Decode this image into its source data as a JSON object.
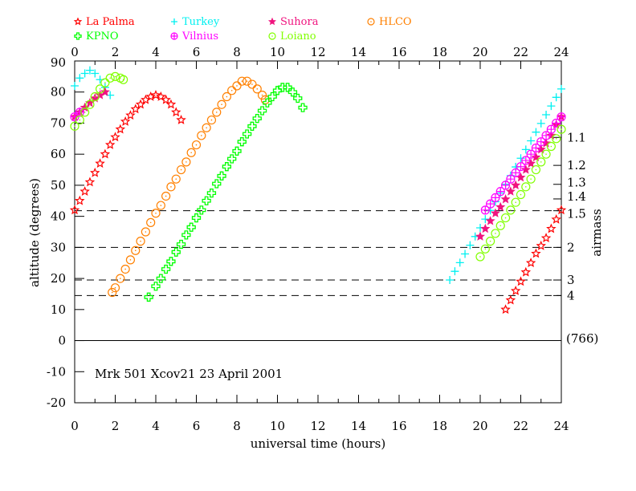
{
  "chart_data": {
    "type": "scatter",
    "annotation": "Mrk 501   Xcov21 23 April 2001",
    "right_note": "(766)",
    "xlabel": "universal time (hours)",
    "ylabel": "altitude (degrees)",
    "y2label": "airmass",
    "xlim": [
      0,
      24
    ],
    "ylim": [
      -20,
      90
    ],
    "x_ticks": [
      0,
      2,
      4,
      6,
      8,
      10,
      12,
      14,
      16,
      18,
      20,
      22,
      24
    ],
    "y_ticks": [
      -20,
      -10,
      0,
      10,
      20,
      30,
      40,
      50,
      60,
      70,
      80,
      90
    ],
    "airmass_ticks": [
      {
        "label": "1.1",
        "altitude": 65.4
      },
      {
        "label": "1.2",
        "altitude": 56.4
      },
      {
        "label": "1.3",
        "altitude": 50.3
      },
      {
        "label": "1.4",
        "altitude": 45.6
      },
      {
        "label": "1.5",
        "altitude": 41.8
      },
      {
        "label": "2",
        "altitude": 30.0
      },
      {
        "label": "3",
        "altitude": 19.5
      },
      {
        "label": "4",
        "altitude": 14.5
      }
    ],
    "dashed_airmass_lines": [
      41.8,
      30.0,
      19.5,
      14.5
    ],
    "legend_position": "top",
    "series": [
      {
        "name": "La Palma",
        "marker": "open-star",
        "color": "#ff0000",
        "segments": [
          [
            [
              0,
              42
            ],
            [
              0.25,
              45
            ],
            [
              0.5,
              48
            ],
            [
              0.75,
              51
            ],
            [
              1,
              54
            ],
            [
              1.25,
              57
            ],
            [
              1.5,
              60
            ],
            [
              1.75,
              63
            ],
            [
              2,
              65.5
            ],
            [
              2.25,
              68
            ],
            [
              2.5,
              70.5
            ],
            [
              2.75,
              72.5
            ],
            [
              3,
              74.5
            ],
            [
              3.25,
              76
            ],
            [
              3.5,
              77.5
            ],
            [
              3.75,
              78.5
            ],
            [
              4,
              79
            ],
            [
              4.25,
              78.5
            ],
            [
              4.5,
              77.5
            ],
            [
              4.75,
              76
            ],
            [
              5,
              73.5
            ],
            [
              5.25,
              71
            ]
          ],
          [
            [
              21.25,
              10
            ],
            [
              21.5,
              13
            ],
            [
              21.75,
              16
            ],
            [
              22,
              19
            ],
            [
              22.25,
              22
            ],
            [
              22.5,
              25
            ],
            [
              22.75,
              28
            ],
            [
              23,
              30.5
            ],
            [
              23.25,
              33
            ],
            [
              23.5,
              36
            ],
            [
              23.75,
              39
            ],
            [
              24,
              42
            ]
          ]
        ]
      },
      {
        "name": "Turkey",
        "marker": "plus",
        "color": "#00f0f0",
        "segments": [
          [
            [
              0,
              82
            ],
            [
              0.25,
              84.5
            ],
            [
              0.5,
              86
            ],
            [
              0.75,
              87
            ],
            [
              1,
              86
            ],
            [
              1.25,
              84
            ],
            [
              1.5,
              81.5
            ],
            [
              1.75,
              79
            ]
          ],
          [
            [
              18.5,
              19.5
            ],
            [
              18.75,
              22.3
            ],
            [
              19,
              25.1
            ],
            [
              19.25,
              27.9
            ],
            [
              19.5,
              30.7
            ],
            [
              19.75,
              33.5
            ],
            [
              20,
              36.3
            ],
            [
              20.25,
              39.1
            ],
            [
              20.5,
              41.9
            ],
            [
              20.75,
              44.7
            ],
            [
              21,
              47.5
            ],
            [
              21.25,
              50.3
            ],
            [
              21.5,
              53.1
            ],
            [
              21.75,
              55.9
            ],
            [
              22,
              58.7
            ],
            [
              22.25,
              61.5
            ],
            [
              22.5,
              64.3
            ],
            [
              22.75,
              67.1
            ],
            [
              23,
              69.9
            ],
            [
              23.25,
              72.7
            ],
            [
              23.5,
              75.5
            ],
            [
              23.75,
              78.3
            ],
            [
              24,
              81
            ]
          ]
        ]
      },
      {
        "name": "Suhora",
        "marker": "filled-star",
        "color": "#f0147f",
        "segments": [
          [
            [
              0,
              72
            ],
            [
              0.25,
              73.5
            ],
            [
              0.5,
              75
            ],
            [
              0.75,
              76.5
            ],
            [
              1,
              78
            ],
            [
              1.25,
              79
            ],
            [
              1.5,
              80
            ]
          ],
          [
            [
              20,
              33.5
            ],
            [
              20.25,
              36
            ],
            [
              20.5,
              38.5
            ],
            [
              20.75,
              41
            ],
            [
              21,
              43
            ],
            [
              21.25,
              45.5
            ],
            [
              21.5,
              48
            ],
            [
              21.75,
              50
            ],
            [
              22,
              52.5
            ],
            [
              22.25,
              55
            ],
            [
              22.5,
              57
            ],
            [
              22.75,
              59
            ],
            [
              23,
              61.5
            ],
            [
              23.25,
              63.5
            ],
            [
              23.5,
              66
            ],
            [
              23.75,
              69.5
            ],
            [
              24,
              72
            ]
          ]
        ]
      },
      {
        "name": "HLCO",
        "marker": "circle-dot",
        "color": "#ff8000",
        "segments": [
          [
            [
              1.85,
              15.5
            ],
            [
              2,
              17
            ],
            [
              2.25,
              20
            ],
            [
              2.5,
              23
            ],
            [
              2.75,
              26
            ],
            [
              3,
              29
            ],
            [
              3.25,
              32
            ],
            [
              3.5,
              35
            ],
            [
              3.75,
              38
            ],
            [
              4,
              41
            ],
            [
              4.25,
              43.5
            ],
            [
              4.5,
              46.5
            ],
            [
              4.75,
              49.5
            ],
            [
              5,
              52
            ],
            [
              5.25,
              55
            ],
            [
              5.5,
              57.5
            ],
            [
              5.75,
              60.5
            ],
            [
              6,
              63
            ],
            [
              6.25,
              66
            ],
            [
              6.5,
              68.5
            ],
            [
              6.75,
              71
            ],
            [
              7,
              73.5
            ],
            [
              7.25,
              76
            ],
            [
              7.5,
              78.5
            ],
            [
              7.75,
              80.5
            ],
            [
              8,
              82
            ],
            [
              8.25,
              83.5
            ],
            [
              8.5,
              83.5
            ],
            [
              8.75,
              82.5
            ],
            [
              9,
              81
            ],
            [
              9.25,
              79
            ],
            [
              9.4,
              77.5
            ]
          ]
        ]
      },
      {
        "name": "KPNO",
        "marker": "open-cross",
        "color": "#00ff00",
        "segments": [
          [
            [
              3.65,
              14
            ],
            [
              4,
              17.5
            ],
            [
              4.25,
              20
            ],
            [
              4.5,
              23
            ],
            [
              4.75,
              25.5
            ],
            [
              5,
              28.5
            ],
            [
              5.25,
              31
            ],
            [
              5.5,
              34
            ],
            [
              5.75,
              36.5
            ],
            [
              6,
              39.5
            ],
            [
              6.25,
              42
            ],
            [
              6.5,
              45
            ],
            [
              6.75,
              47.5
            ],
            [
              7,
              50.5
            ],
            [
              7.25,
              53
            ],
            [
              7.5,
              56
            ],
            [
              7.75,
              58.5
            ],
            [
              8,
              61
            ],
            [
              8.25,
              64
            ],
            [
              8.5,
              66.5
            ],
            [
              8.75,
              69
            ],
            [
              9,
              71.5
            ],
            [
              9.25,
              74
            ],
            [
              9.5,
              76.5
            ],
            [
              9.75,
              78.5
            ],
            [
              10,
              80.5
            ],
            [
              10.25,
              81.5
            ],
            [
              10.5,
              81.5
            ],
            [
              10.75,
              80
            ],
            [
              11,
              78
            ],
            [
              11.25,
              75
            ]
          ]
        ]
      },
      {
        "name": "Vilnius",
        "marker": "circle-plus",
        "color": "#ff00ff",
        "segments": [
          [
            [
              0,
              72
            ],
            [
              0.25,
              73.5
            ]
          ],
          [
            [
              20.25,
              42
            ],
            [
              20.5,
              44
            ],
            [
              20.75,
              46
            ],
            [
              21,
              48
            ],
            [
              21.25,
              50
            ],
            [
              21.5,
              52
            ],
            [
              21.75,
              54
            ],
            [
              22,
              56
            ],
            [
              22.25,
              58
            ],
            [
              22.5,
              60
            ],
            [
              22.75,
              62
            ],
            [
              23,
              64
            ],
            [
              23.25,
              66
            ],
            [
              23.5,
              68
            ],
            [
              23.75,
              70
            ],
            [
              24,
              72
            ]
          ]
        ]
      },
      {
        "name": "Loiano",
        "marker": "circle-dot",
        "color": "#80ff00",
        "segments": [
          [
            [
              0,
              69
            ],
            [
              0.25,
              71
            ],
            [
              0.5,
              73.5
            ],
            [
              0.75,
              76
            ],
            [
              1,
              78.5
            ],
            [
              1.25,
              81
            ],
            [
              1.5,
              83
            ],
            [
              1.75,
              84.5
            ],
            [
              2,
              85
            ],
            [
              2.25,
              84.5
            ],
            [
              2.4,
              84
            ]
          ],
          [
            [
              20,
              27
            ],
            [
              20.25,
              29.5
            ],
            [
              20.5,
              32
            ],
            [
              20.75,
              34.5
            ],
            [
              21,
              37
            ],
            [
              21.25,
              39.5
            ],
            [
              21.5,
              42
            ],
            [
              21.75,
              44.5
            ],
            [
              22,
              47
            ],
            [
              22.25,
              49.5
            ],
            [
              22.5,
              52
            ],
            [
              22.75,
              55
            ],
            [
              23,
              57.5
            ],
            [
              23.25,
              60
            ],
            [
              23.5,
              62.5
            ],
            [
              23.75,
              65
            ],
            [
              24,
              68
            ]
          ]
        ]
      }
    ]
  }
}
